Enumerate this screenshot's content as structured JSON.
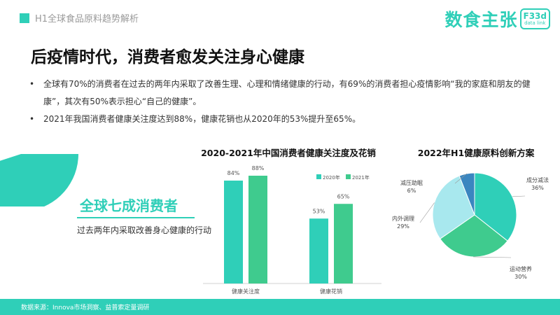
{
  "header": {
    "section_label": "H1全球食品原料趋势解析",
    "brand_main": "数食主张",
    "brand_food": "F33d",
    "brand_datalink": "data link"
  },
  "headline": "后疫情时代，消费者愈发关注身心健康",
  "bullets": [
    "全球有70%的消费者在过去的两年内采取了改善生理、心理和情绪健康的行动，有69%的消费者担心疫情影响“我的家庭和朋友的健康”，其次有50%表示担心“自己的健康”。",
    "2021年我国消费者健康关注度达到88%，健康花销也从2020年的53%提升至65%。"
  ],
  "highlight": {
    "title": "全球七成消费者",
    "subtitle": "过去两年内采取改善身心健康的行动"
  },
  "colors": {
    "accent": "#2fcfb8",
    "bar_2020": "#2fcfb8",
    "bar_2021": "#3fcb8e"
  },
  "chart_data": [
    {
      "type": "pie",
      "title": "",
      "labels": [
        "全球七成消费者"
      ],
      "values": [
        70
      ],
      "note": "partial pie showing 70% share"
    },
    {
      "type": "bar",
      "title": "2020-2021年中国消费者健康关注度及花销",
      "categories": [
        "健康关注度",
        "健康花销"
      ],
      "series": [
        {
          "name": "2020年",
          "values": [
            84,
            53
          ],
          "labels": [
            "84%",
            "53%"
          ]
        },
        {
          "name": "2021年",
          "values": [
            88,
            65
          ],
          "labels": [
            "88%",
            "65%"
          ]
        }
      ],
      "ylim": [
        0,
        100
      ],
      "legend": "top-right",
      "grid": false
    },
    {
      "type": "pie",
      "title": "2022年H1健康原料创新方案",
      "slices": [
        {
          "label": "成分减法",
          "value": 36,
          "value_label": "36%",
          "color": "#2fcfb8"
        },
        {
          "label": "运动营养",
          "value": 30,
          "value_label": "30%",
          "color": "#3fcb8e"
        },
        {
          "label": "内外调理",
          "value": 29,
          "value_label": "29%",
          "color": "#a8e8ee"
        },
        {
          "label": "减压助眠",
          "value": 6,
          "value_label": "6%",
          "color": "#3a86c0"
        }
      ]
    }
  ],
  "footer": "数据来源：Innova市场洞察、益普索定量调研"
}
